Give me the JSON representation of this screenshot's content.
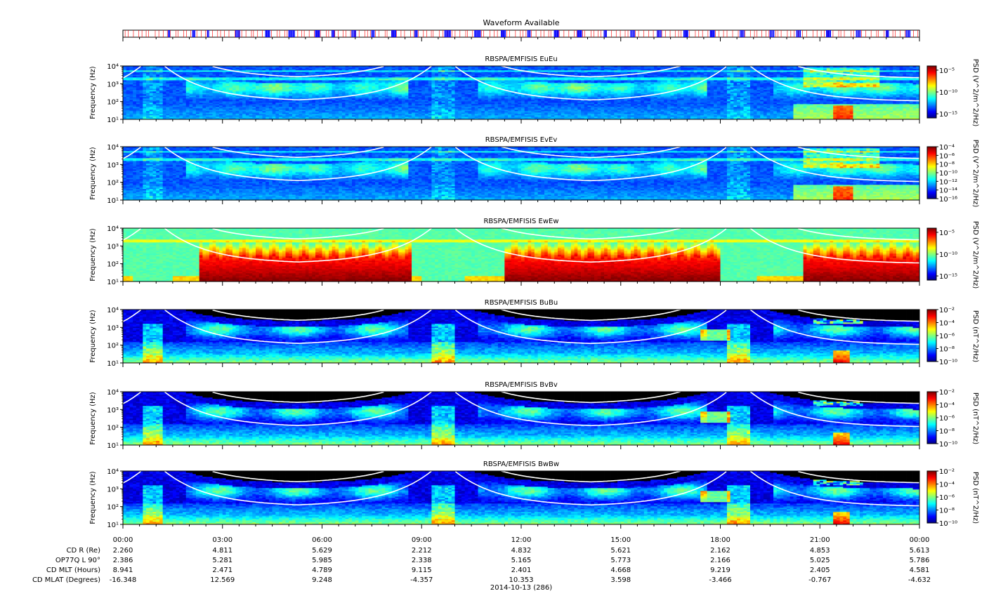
{
  "waveform": {
    "title": "Waveform Available",
    "colors": {
      "present": "#0000ff",
      "marker": "#ff0000"
    },
    "bursts": [
      [
        1.37,
        1.44
      ],
      [
        2.1,
        2.2
      ],
      [
        2.55,
        2.62
      ],
      [
        3.4,
        3.55
      ],
      [
        4.3,
        4.45
      ],
      [
        5.0,
        5.2
      ],
      [
        5.8,
        5.95
      ],
      [
        6.3,
        6.4
      ],
      [
        6.9,
        7.05
      ],
      [
        7.5,
        7.6
      ],
      [
        8.1,
        8.25
      ],
      [
        8.8,
        8.9
      ],
      [
        9.7,
        9.9
      ],
      [
        10.6,
        10.8
      ],
      [
        11.4,
        11.55
      ],
      [
        12.2,
        12.3
      ],
      [
        13.0,
        13.15
      ],
      [
        13.7,
        13.85
      ],
      [
        14.5,
        14.6
      ],
      [
        15.3,
        15.45
      ],
      [
        16.1,
        16.25
      ],
      [
        16.9,
        17.05
      ],
      [
        17.7,
        17.85
      ],
      [
        18.6,
        18.75
      ],
      [
        19.5,
        19.65
      ],
      [
        20.3,
        20.45
      ],
      [
        21.2,
        21.35
      ],
      [
        22.1,
        22.25
      ],
      [
        23.0,
        23.1
      ],
      [
        23.6,
        23.75
      ]
    ]
  },
  "chart_data": [
    {
      "type": "heatmap",
      "title": "RBSPA/EMFISIS  EuEu",
      "ylabel": "Frequency (Hz)",
      "ylim": [
        10,
        10000
      ],
      "yscale": "log",
      "yticks": [
        "10¹",
        "10²",
        "10³",
        "10⁴"
      ],
      "colorbar": {
        "label": "PSD (V^2/m^2/Hz)",
        "ticks": [
          "10⁻⁵",
          "10⁻¹⁰",
          "10⁻¹⁵"
        ],
        "range_log10": [
          -16,
          -4
        ]
      },
      "overlays": [
        "fce",
        "0.1 fce"
      ],
      "baseline_log10": -13.5
    },
    {
      "type": "heatmap",
      "title": "RBSPA/EMFISIS  EvEv",
      "ylabel": "Frequency (Hz)",
      "ylim": [
        10,
        10000
      ],
      "yscale": "log",
      "yticks": [
        "10¹",
        "10²",
        "10³",
        "10⁴"
      ],
      "colorbar": {
        "label": "PSD (V^2/m^2/Hz)",
        "ticks": [
          "10⁻⁴",
          "10⁻⁶",
          "10⁻⁸",
          "10⁻¹⁰",
          "10⁻¹²",
          "10⁻¹⁴",
          "10⁻¹⁶"
        ],
        "range_log10": [
          -16,
          -4
        ]
      },
      "overlays": [
        "fce",
        "0.1 fce"
      ],
      "baseline_log10": -13.5
    },
    {
      "type": "heatmap",
      "title": "RBSPA/EMFISIS  EwEw",
      "ylabel": "Frequency (Hz)",
      "ylim": [
        10,
        10000
      ],
      "yscale": "log",
      "yticks": [
        "10¹",
        "10²",
        "10³",
        "10⁴"
      ],
      "colorbar": {
        "label": "PSD (V^2/m^2/Hz)",
        "ticks": [
          "10⁻⁵",
          "10⁻¹⁰",
          "10⁻¹⁵"
        ],
        "range_log10": [
          -16,
          -4
        ]
      },
      "overlays": [
        "fce",
        "0.1 fce"
      ],
      "baseline_log10": -10.5
    },
    {
      "type": "heatmap",
      "title": "RBSPA/EMFISIS  BuBu",
      "ylabel": "Frequency (Hz)",
      "ylim": [
        10,
        10000
      ],
      "yscale": "log",
      "yticks": [
        "10¹",
        "10²",
        "10³",
        "10⁴"
      ],
      "colorbar": {
        "label": "PSD (nT^2/Hz)",
        "ticks": [
          "10⁻²",
          "10⁻⁴",
          "10⁻⁶",
          "10⁻⁸",
          "10⁻¹⁰"
        ],
        "range_log10": [
          -10,
          -2
        ]
      },
      "overlays": [
        "fce",
        "0.1 fce"
      ],
      "baseline_log10": -9.2
    },
    {
      "type": "heatmap",
      "title": "RBSPA/EMFISIS  BvBv",
      "ylabel": "Frequency (Hz)",
      "ylim": [
        10,
        10000
      ],
      "yscale": "log",
      "yticks": [
        "10¹",
        "10²",
        "10³",
        "10⁴"
      ],
      "colorbar": {
        "label": "PSD (nT^2/Hz)",
        "ticks": [
          "10⁻²",
          "10⁻⁴",
          "10⁻⁶",
          "10⁻⁸",
          "10⁻¹⁰"
        ],
        "range_log10": [
          -10,
          -2
        ]
      },
      "overlays": [
        "fce",
        "0.1 fce"
      ],
      "baseline_log10": -9.2
    },
    {
      "type": "heatmap",
      "title": "RBSPA/EMFISIS  BwBw",
      "ylabel": "Frequency (Hz)",
      "ylim": [
        10,
        10000
      ],
      "yscale": "log",
      "yticks": [
        "10¹",
        "10²",
        "10³",
        "10⁴"
      ],
      "colorbar": {
        "label": "PSD (nT^2/Hz)",
        "ticks": [
          "10⁻²",
          "10⁻⁴",
          "10⁻⁶",
          "10⁻⁸",
          "10⁻¹⁰"
        ],
        "range_log10": [
          -10,
          -2
        ]
      },
      "overlays": [
        "fce",
        "0.1 fce"
      ],
      "baseline_log10": -9.2
    }
  ],
  "xaxis": {
    "range_hours": [
      0,
      24
    ],
    "tick_labels": [
      "00:00",
      "03:00",
      "06:00",
      "09:00",
      "12:00",
      "15:00",
      "18:00",
      "21:00",
      "00:00"
    ],
    "date_label": "2014-10-13 (286)"
  },
  "ephemeris": [
    {
      "label": "CD R (Re)",
      "values": [
        "2.260",
        "4.811",
        "5.629",
        "2.212",
        "4.832",
        "5.621",
        "2.162",
        "4.853",
        "5.613"
      ]
    },
    {
      "label": "OP77Q L 90°",
      "values": [
        "2.386",
        "5.281",
        "5.985",
        "2.338",
        "5.165",
        "5.773",
        "2.166",
        "5.025",
        "5.786"
      ]
    },
    {
      "label": "CD MLT (Hours)",
      "values": [
        "8.941",
        "2.471",
        "4.789",
        "9.115",
        "2.401",
        "4.668",
        "9.219",
        "2.405",
        "4.581"
      ]
    },
    {
      "label": "CD MLAT (Degrees)",
      "values": [
        "-16.348",
        "12.569",
        "9.248",
        "-4.357",
        "10.353",
        "3.598",
        "-3.466",
        "-0.767",
        "-4.632"
      ]
    }
  ],
  "orbit": {
    "perigee_hours": [
      0.9,
      9.65,
      18.55
    ],
    "apogee_hours": [
      4.8,
      13.6,
      22.5
    ]
  }
}
